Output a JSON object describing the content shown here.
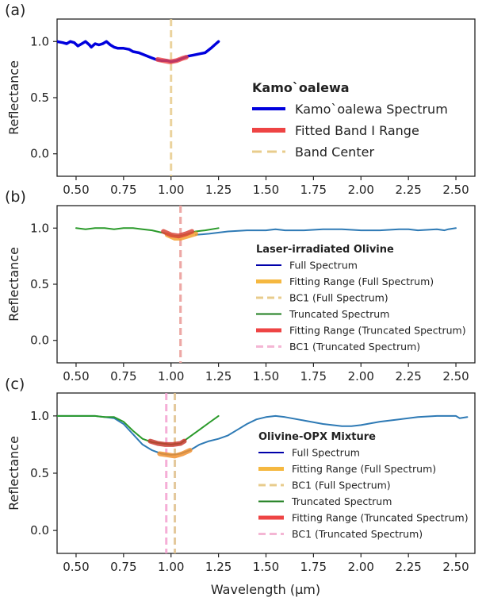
{
  "figure": {
    "xlabel": "Wavelength (µm)",
    "ylabel": "Reflectance"
  },
  "chart_data": [
    {
      "type": "line",
      "panel_label": "(a)",
      "xlim": [
        0.4,
        2.6
      ],
      "ylim": [
        -0.2,
        1.2
      ],
      "xticks": [
        "0.50",
        "0.75",
        "1.00",
        "1.25",
        "1.50",
        "1.75",
        "2.00",
        "2.25",
        "2.50"
      ],
      "yticks": [
        "0.0",
        "0.5",
        "1.0"
      ],
      "ylabel": "Reflectance",
      "legend": {
        "title": "Kamo`oalewa",
        "position": "center-right",
        "entries": [
          {
            "label": "Kamo`oalewa Spectrum",
            "style": "solid",
            "color": "#0000dd"
          },
          {
            "label": "Fitted Band I Range",
            "style": "thick",
            "color": "#ee4444"
          },
          {
            "label": "Band Center",
            "style": "dashed",
            "color": "#e8cc8c"
          }
        ]
      },
      "series": [
        {
          "name": "Kamo`oalewa Spectrum",
          "color": "#0000dd",
          "width": 3.5,
          "x": [
            0.4,
            0.43,
            0.45,
            0.47,
            0.49,
            0.51,
            0.53,
            0.55,
            0.57,
            0.58,
            0.6,
            0.62,
            0.64,
            0.66,
            0.68,
            0.7,
            0.72,
            0.75,
            0.78,
            0.8,
            0.83,
            0.86,
            0.89,
            0.92,
            0.95,
            0.98,
            1.0,
            1.03,
            1.06,
            1.09,
            1.12,
            1.15,
            1.18,
            1.21,
            1.23,
            1.25
          ],
          "y": [
            1.0,
            0.99,
            0.98,
            1.0,
            0.99,
            0.96,
            0.98,
            1.0,
            0.97,
            0.95,
            0.98,
            0.97,
            0.98,
            1.0,
            0.97,
            0.95,
            0.94,
            0.94,
            0.93,
            0.91,
            0.9,
            0.88,
            0.86,
            0.84,
            0.83,
            0.83,
            0.82,
            0.83,
            0.85,
            0.87,
            0.88,
            0.89,
            0.9,
            0.94,
            0.97,
            1.0
          ]
        },
        {
          "name": "Fitted Band I Range",
          "color": "#ee4444",
          "width": 6,
          "opacity": 0.8,
          "x": [
            0.93,
            0.96,
            0.99,
            1.0,
            1.03,
            1.06,
            1.08
          ],
          "y": [
            0.84,
            0.83,
            0.82,
            0.82,
            0.83,
            0.85,
            0.86
          ]
        }
      ],
      "vlines": [
        {
          "name": "Band Center",
          "x": 1.0,
          "color": "#e8cc8c"
        }
      ]
    },
    {
      "type": "line",
      "panel_label": "(b)",
      "xlim": [
        0.4,
        2.6
      ],
      "ylim": [
        -0.2,
        1.2
      ],
      "xticks": [
        "0.50",
        "0.75",
        "1.00",
        "1.25",
        "1.50",
        "1.75",
        "2.00",
        "2.25",
        "2.50"
      ],
      "yticks": [
        "0.0",
        "0.5",
        "1.0"
      ],
      "ylabel": "Reflectance",
      "legend": {
        "title": "Laser-irradiated Olivine",
        "position": "center-right",
        "entries": [
          {
            "label": "Full Spectrum",
            "style": "solid",
            "color": "#0000aa"
          },
          {
            "label": "Fitting Range (Full Spectrum)",
            "style": "thick",
            "color": "#f5b840"
          },
          {
            "label": "BC1 (Full Spectrum)",
            "style": "dashed",
            "color": "#e8cc8c"
          },
          {
            "label": "Truncated Spectrum",
            "style": "solid",
            "color": "#1e7e1e"
          },
          {
            "label": "Fitting Range (Truncated Spectrum)",
            "style": "thick",
            "color": "#ee4444"
          },
          {
            "label": "BC1 (Truncated Spectrum)",
            "style": "dashed",
            "color": "#f4b6d4"
          }
        ]
      },
      "series": [
        {
          "name": "Full Spectrum",
          "color": "#2e7ab5",
          "width": 2,
          "x": [
            1.13,
            1.2,
            1.3,
            1.4,
            1.5,
            1.55,
            1.6,
            1.7,
            1.8,
            1.9,
            2.0,
            2.1,
            2.2,
            2.25,
            2.3,
            2.4,
            2.44,
            2.46,
            2.5
          ],
          "y": [
            0.94,
            0.95,
            0.97,
            0.98,
            0.98,
            0.99,
            0.98,
            0.98,
            0.99,
            0.99,
            0.98,
            0.98,
            0.99,
            0.99,
            0.98,
            0.99,
            0.98,
            0.99,
            1.0
          ]
        },
        {
          "name": "Truncated Spectrum",
          "color": "#2a9a2a",
          "width": 2,
          "x": [
            0.5,
            0.55,
            0.6,
            0.65,
            0.7,
            0.75,
            0.8,
            0.85,
            0.9,
            0.95,
            0.98,
            1.02,
            1.05,
            1.09,
            1.13,
            1.18,
            1.25
          ],
          "y": [
            1.0,
            0.99,
            1.0,
            1.0,
            0.99,
            1.0,
            1.0,
            0.99,
            0.98,
            0.96,
            0.95,
            0.93,
            0.93,
            0.95,
            0.97,
            0.98,
            1.0
          ]
        },
        {
          "name": "Fitting Range (Full Spectrum)",
          "color": "#f5a030",
          "width": 6,
          "opacity": 0.85,
          "x": [
            0.98,
            1.02,
            1.05,
            1.09,
            1.13
          ],
          "y": [
            0.94,
            0.91,
            0.91,
            0.93,
            0.95
          ]
        },
        {
          "name": "Fitting Range (Truncated Spectrum)",
          "color": "#d84438",
          "width": 6,
          "opacity": 0.85,
          "x": [
            0.96,
            1.0,
            1.04,
            1.08,
            1.11
          ],
          "y": [
            0.97,
            0.94,
            0.93,
            0.95,
            0.97
          ]
        }
      ],
      "vlines": [
        {
          "name": "BC1 (Full Spectrum)",
          "x": 1.05,
          "color": "#e8cc8c"
        },
        {
          "name": "BC1 (Truncated Spectrum)",
          "x": 1.05,
          "color": "#eea0a8"
        }
      ]
    },
    {
      "type": "line",
      "panel_label": "(c)",
      "xlim": [
        0.4,
        2.6
      ],
      "ylim": [
        -0.2,
        1.2
      ],
      "xticks": [
        "0.50",
        "0.75",
        "1.00",
        "1.25",
        "1.50",
        "1.75",
        "2.00",
        "2.25",
        "2.50"
      ],
      "yticks": [
        "0.0",
        "0.5",
        "1.0"
      ],
      "ylabel": "Reflectance",
      "legend": {
        "title": "Olivine-OPX Mixture",
        "position": "center-right",
        "entries": [
          {
            "label": "Full Spectrum",
            "style": "solid",
            "color": "#0000aa"
          },
          {
            "label": "Fitting Range (Full Spectrum)",
            "style": "thick",
            "color": "#f5b840"
          },
          {
            "label": "BC1 (Full Spectrum)",
            "style": "dashed",
            "color": "#e8cc8c"
          },
          {
            "label": "Truncated Spectrum",
            "style": "solid",
            "color": "#1e7e1e"
          },
          {
            "label": "Fitting Range (Truncated Spectrum)",
            "style": "thick",
            "color": "#ee4444"
          },
          {
            "label": "BC1 (Truncated Spectrum)",
            "style": "dashed",
            "color": "#f4b6d4"
          }
        ]
      },
      "series": [
        {
          "name": "Full Spectrum",
          "color": "#2e7ab5",
          "width": 2,
          "x": [
            0.4,
            0.5,
            0.6,
            0.65,
            0.7,
            0.75,
            0.8,
            0.85,
            0.9,
            0.95,
            1.0,
            1.05,
            1.1,
            1.15,
            1.2,
            1.25,
            1.3,
            1.35,
            1.4,
            1.45,
            1.5,
            1.55,
            1.6,
            1.7,
            1.8,
            1.9,
            1.95,
            2.0,
            2.1,
            2.2,
            2.3,
            2.4,
            2.5,
            2.52,
            2.56
          ],
          "y": [
            1.0,
            1.0,
            1.0,
            0.99,
            0.98,
            0.93,
            0.84,
            0.75,
            0.7,
            0.67,
            0.66,
            0.67,
            0.7,
            0.75,
            0.78,
            0.8,
            0.83,
            0.88,
            0.93,
            0.97,
            0.99,
            1.0,
            0.99,
            0.96,
            0.93,
            0.91,
            0.91,
            0.92,
            0.95,
            0.97,
            0.99,
            1.0,
            1.0,
            0.98,
            0.99
          ]
        },
        {
          "name": "Truncated Spectrum",
          "color": "#2a9a2a",
          "width": 2,
          "x": [
            0.4,
            0.5,
            0.6,
            0.65,
            0.7,
            0.75,
            0.8,
            0.85,
            0.9,
            0.95,
            1.0,
            1.05,
            1.1,
            1.15,
            1.2,
            1.25
          ],
          "y": [
            1.0,
            1.0,
            1.0,
            0.99,
            0.99,
            0.95,
            0.87,
            0.8,
            0.77,
            0.76,
            0.75,
            0.76,
            0.82,
            0.88,
            0.94,
            1.0
          ]
        },
        {
          "name": "Fitting Range (Full Spectrum)",
          "color": "#f09030",
          "width": 6,
          "opacity": 0.85,
          "x": [
            0.94,
            0.98,
            1.02,
            1.06,
            1.1
          ],
          "y": [
            0.67,
            0.66,
            0.65,
            0.67,
            0.7
          ]
        },
        {
          "name": "Fitting Range (Truncated Spectrum)",
          "color": "#c83a30",
          "width": 6,
          "opacity": 0.85,
          "x": [
            0.89,
            0.93,
            0.97,
            1.01,
            1.05,
            1.07
          ],
          "y": [
            0.78,
            0.76,
            0.75,
            0.75,
            0.76,
            0.78
          ]
        }
      ],
      "vlines": [
        {
          "name": "BC1 (Full Spectrum)",
          "x": 1.02,
          "color": "#e0c08c"
        },
        {
          "name": "BC1 (Truncated Spectrum)",
          "x": 0.975,
          "color": "#f4a0d0"
        }
      ]
    }
  ]
}
